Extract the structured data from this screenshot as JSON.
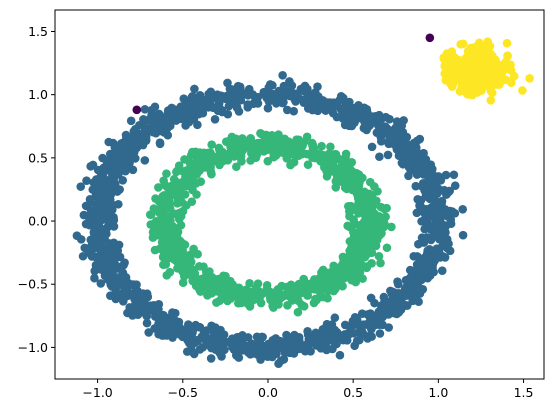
{
  "chart_data": {
    "type": "scatter",
    "title": "",
    "xlabel": "",
    "ylabel": "",
    "xlim": [
      -1.25,
      1.62
    ],
    "ylim": [
      -1.25,
      1.67
    ],
    "grid": false,
    "x_ticks": [
      -1.0,
      -0.5,
      0.0,
      0.5,
      1.0,
      1.5
    ],
    "x_tick_labels": [
      "−1.0",
      "−0.5",
      "0.0",
      "0.5",
      "1.0",
      "1.5"
    ],
    "y_ticks": [
      -1.0,
      -0.5,
      0.0,
      0.5,
      1.0,
      1.5
    ],
    "y_tick_labels": [
      "−1.0",
      "−0.5",
      "0.0",
      "0.5",
      "1.0",
      "1.5"
    ],
    "clusters": [
      {
        "shape": "ring",
        "color": "#31688e",
        "center": [
          0.0,
          0.0
        ],
        "radius": 1.0,
        "spread": 0.05,
        "n_points": 1400
      },
      {
        "shape": "ring",
        "color": "#35b779",
        "center": [
          0.0,
          0.0
        ],
        "radius": 0.6,
        "spread": 0.05,
        "n_points": 1000
      },
      {
        "shape": "blob",
        "color": "#fde725",
        "center": [
          1.22,
          1.18
        ],
        "spread": 0.08,
        "n_points": 450
      },
      {
        "shape": "outliers",
        "color": "#440154",
        "points": [
          [
            -0.77,
            0.88
          ],
          [
            0.95,
            1.45
          ]
        ]
      }
    ],
    "marker_radius_px": 4.3
  }
}
